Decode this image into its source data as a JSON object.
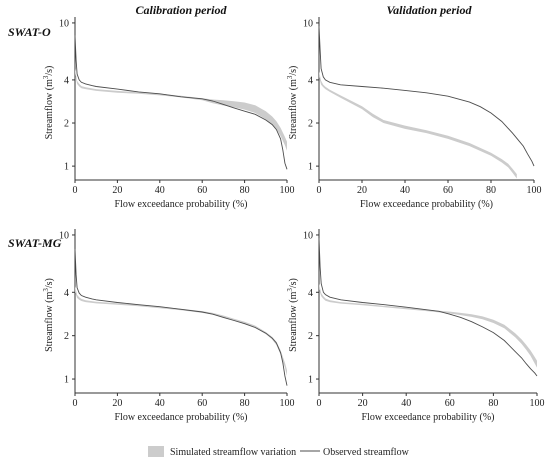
{
  "column_titles": [
    "Calibration period",
    "Validation period"
  ],
  "row_titles": [
    "SWAT-O",
    "SWAT-MG"
  ],
  "legend": {
    "band_label": "Simulated streamflow variation",
    "line_label": "Observed streamflow"
  },
  "colors": {
    "band": "#cccccc",
    "line": "#4d4d4d",
    "axis": "#333333"
  },
  "chart_data": [
    {
      "type": "line",
      "panel": "SWAT-O calibration",
      "xlabel": "Flow exceedance probability (%)",
      "ylabel": "Streamflow (m³/s)",
      "ylabel_prefix": "Streamflow (m",
      "ylabel_sup": "3",
      "ylabel_suffix": "/s)",
      "xlim": [
        0,
        100
      ],
      "ylim": [
        0.8,
        11
      ],
      "yscale": "log",
      "xticks": [
        0,
        20,
        40,
        60,
        80,
        100
      ],
      "yticks": [
        1,
        2,
        4,
        10
      ],
      "observed": {
        "x": [
          0,
          0.5,
          1,
          2,
          3,
          5,
          8,
          10,
          20,
          30,
          40,
          50,
          60,
          65,
          70,
          75,
          80,
          85,
          90,
          93,
          95,
          97,
          98,
          99,
          100
        ],
        "y": [
          8.2,
          5.5,
          4.4,
          4.0,
          3.85,
          3.75,
          3.65,
          3.6,
          3.45,
          3.3,
          3.2,
          3.05,
          2.95,
          2.85,
          2.7,
          2.55,
          2.42,
          2.3,
          2.1,
          1.95,
          1.8,
          1.55,
          1.3,
          1.05,
          0.95
        ]
      },
      "simulated_band": {
        "x": [
          0,
          1,
          2,
          3,
          5,
          10,
          20,
          30,
          40,
          50,
          60,
          65,
          70,
          75,
          80,
          85,
          90,
          93,
          95,
          97,
          99,
          100
        ],
        "lower": [
          4.4,
          3.75,
          3.6,
          3.5,
          3.45,
          3.35,
          3.25,
          3.2,
          3.12,
          3.02,
          2.88,
          2.75,
          2.65,
          2.58,
          2.48,
          2.35,
          2.12,
          1.95,
          1.82,
          1.62,
          1.4,
          1.28
        ],
        "upper": [
          4.8,
          3.95,
          3.75,
          3.62,
          3.55,
          3.45,
          3.35,
          3.28,
          3.2,
          3.1,
          2.98,
          2.92,
          2.88,
          2.84,
          2.78,
          2.66,
          2.42,
          2.22,
          2.06,
          1.85,
          1.6,
          1.48
        ]
      }
    },
    {
      "type": "line",
      "panel": "SWAT-O validation",
      "xlabel": "Flow exceedance probability (%)",
      "ylabel": "Streamflow (m³/s)",
      "ylabel_prefix": "Streamflow (m",
      "ylabel_sup": "3",
      "ylabel_suffix": "/s)",
      "xlim": [
        0,
        100
      ],
      "ylim": [
        0.8,
        11
      ],
      "yscale": "log",
      "xticks": [
        0,
        20,
        40,
        60,
        80,
        100
      ],
      "yticks": [
        1,
        2,
        4,
        10
      ],
      "observed": {
        "x": [
          0,
          0.5,
          1,
          2,
          3,
          5,
          10,
          20,
          30,
          40,
          50,
          60,
          70,
          75,
          80,
          85,
          90,
          93,
          95,
          97,
          99,
          100
        ],
        "y": [
          9.5,
          6.5,
          4.8,
          4.2,
          4.0,
          3.85,
          3.7,
          3.6,
          3.5,
          3.38,
          3.25,
          3.08,
          2.8,
          2.6,
          2.35,
          2.05,
          1.7,
          1.5,
          1.38,
          1.22,
          1.08,
          1.0
        ]
      },
      "simulated_band": {
        "x": [
          0,
          1,
          2,
          3,
          5,
          10,
          20,
          25,
          30,
          40,
          50,
          60,
          70,
          80,
          85,
          88,
          90,
          92
        ],
        "lower": [
          4.2,
          3.7,
          3.55,
          3.45,
          3.3,
          3.0,
          2.5,
          2.2,
          2.0,
          1.82,
          1.7,
          1.55,
          1.38,
          1.18,
          1.06,
          0.98,
          0.9,
          0.82
        ],
        "upper": [
          4.6,
          3.95,
          3.7,
          3.58,
          3.42,
          3.12,
          2.62,
          2.32,
          2.1,
          1.92,
          1.78,
          1.63,
          1.45,
          1.24,
          1.12,
          1.04,
          0.96,
          0.88
        ]
      }
    },
    {
      "type": "line",
      "panel": "SWAT-MG calibration",
      "xlabel": "Flow exceedance probability (%)",
      "ylabel": "Streamflow (m³/s)",
      "ylabel_prefix": "Streamflow (m",
      "ylabel_sup": "3",
      "ylabel_suffix": "/s)",
      "xlim": [
        0,
        100
      ],
      "ylim": [
        0.8,
        11
      ],
      "yscale": "log",
      "xticks": [
        0,
        20,
        40,
        60,
        80,
        100
      ],
      "yticks": [
        1,
        2,
        4,
        10
      ],
      "observed": {
        "x": [
          0,
          0.5,
          1,
          2,
          3,
          5,
          8,
          10,
          20,
          30,
          40,
          50,
          60,
          65,
          70,
          75,
          80,
          85,
          90,
          93,
          95,
          97,
          98,
          99,
          100
        ],
        "y": [
          8.0,
          5.3,
          4.3,
          3.95,
          3.8,
          3.7,
          3.6,
          3.55,
          3.4,
          3.28,
          3.18,
          3.05,
          2.92,
          2.82,
          2.68,
          2.55,
          2.42,
          2.28,
          2.08,
          1.92,
          1.78,
          1.52,
          1.3,
          1.05,
          0.9
        ]
      },
      "simulated_band": {
        "x": [
          0,
          1,
          2,
          3,
          5,
          10,
          20,
          30,
          40,
          50,
          60,
          65,
          70,
          75,
          80,
          85,
          90,
          93,
          95,
          97,
          99,
          100
        ],
        "lower": [
          4.0,
          3.65,
          3.55,
          3.48,
          3.42,
          3.35,
          3.28,
          3.2,
          3.1,
          3.0,
          2.88,
          2.8,
          2.68,
          2.55,
          2.42,
          2.27,
          2.05,
          1.88,
          1.72,
          1.48,
          1.2,
          1.05
        ],
        "upper": [
          4.4,
          3.85,
          3.7,
          3.6,
          3.52,
          3.44,
          3.36,
          3.28,
          3.18,
          3.08,
          2.96,
          2.88,
          2.76,
          2.62,
          2.5,
          2.35,
          2.12,
          1.96,
          1.82,
          1.58,
          1.3,
          1.15
        ]
      }
    },
    {
      "type": "line",
      "panel": "SWAT-MG validation",
      "xlabel": "Flow exceedance probability (%)",
      "ylabel": "Streamflow (m³/s)",
      "ylabel_prefix": "Streamflow (m",
      "ylabel_sup": "3",
      "ylabel_suffix": "/s)",
      "xlim": [
        0,
        100
      ],
      "ylim": [
        0.8,
        11
      ],
      "yscale": "log",
      "xticks": [
        0,
        20,
        40,
        60,
        80,
        100
      ],
      "yticks": [
        1,
        2,
        4,
        10
      ],
      "observed": {
        "x": [
          0,
          0.5,
          1,
          2,
          3,
          5,
          10,
          20,
          30,
          40,
          50,
          55,
          60,
          65,
          70,
          75,
          80,
          85,
          90,
          93,
          95,
          97,
          99,
          100
        ],
        "y": [
          9.5,
          6.0,
          4.6,
          4.0,
          3.85,
          3.7,
          3.55,
          3.4,
          3.28,
          3.15,
          3.02,
          2.95,
          2.82,
          2.68,
          2.5,
          2.3,
          2.1,
          1.85,
          1.55,
          1.4,
          1.28,
          1.18,
          1.1,
          1.05
        ]
      },
      "simulated_band": {
        "x": [
          0,
          1,
          2,
          3,
          5,
          10,
          20,
          30,
          40,
          50,
          55,
          60,
          65,
          70,
          75,
          80,
          85,
          90,
          93,
          95,
          97,
          99,
          100
        ],
        "lower": [
          4.2,
          3.75,
          3.6,
          3.5,
          3.42,
          3.34,
          3.25,
          3.15,
          3.05,
          2.95,
          2.9,
          2.85,
          2.78,
          2.7,
          2.6,
          2.45,
          2.25,
          1.95,
          1.75,
          1.6,
          1.45,
          1.28,
          1.2
        ],
        "upper": [
          4.6,
          3.95,
          3.75,
          3.62,
          3.52,
          3.42,
          3.33,
          3.22,
          3.12,
          3.02,
          2.98,
          2.94,
          2.88,
          2.82,
          2.72,
          2.58,
          2.38,
          2.08,
          1.88,
          1.73,
          1.58,
          1.42,
          1.34
        ]
      }
    }
  ]
}
